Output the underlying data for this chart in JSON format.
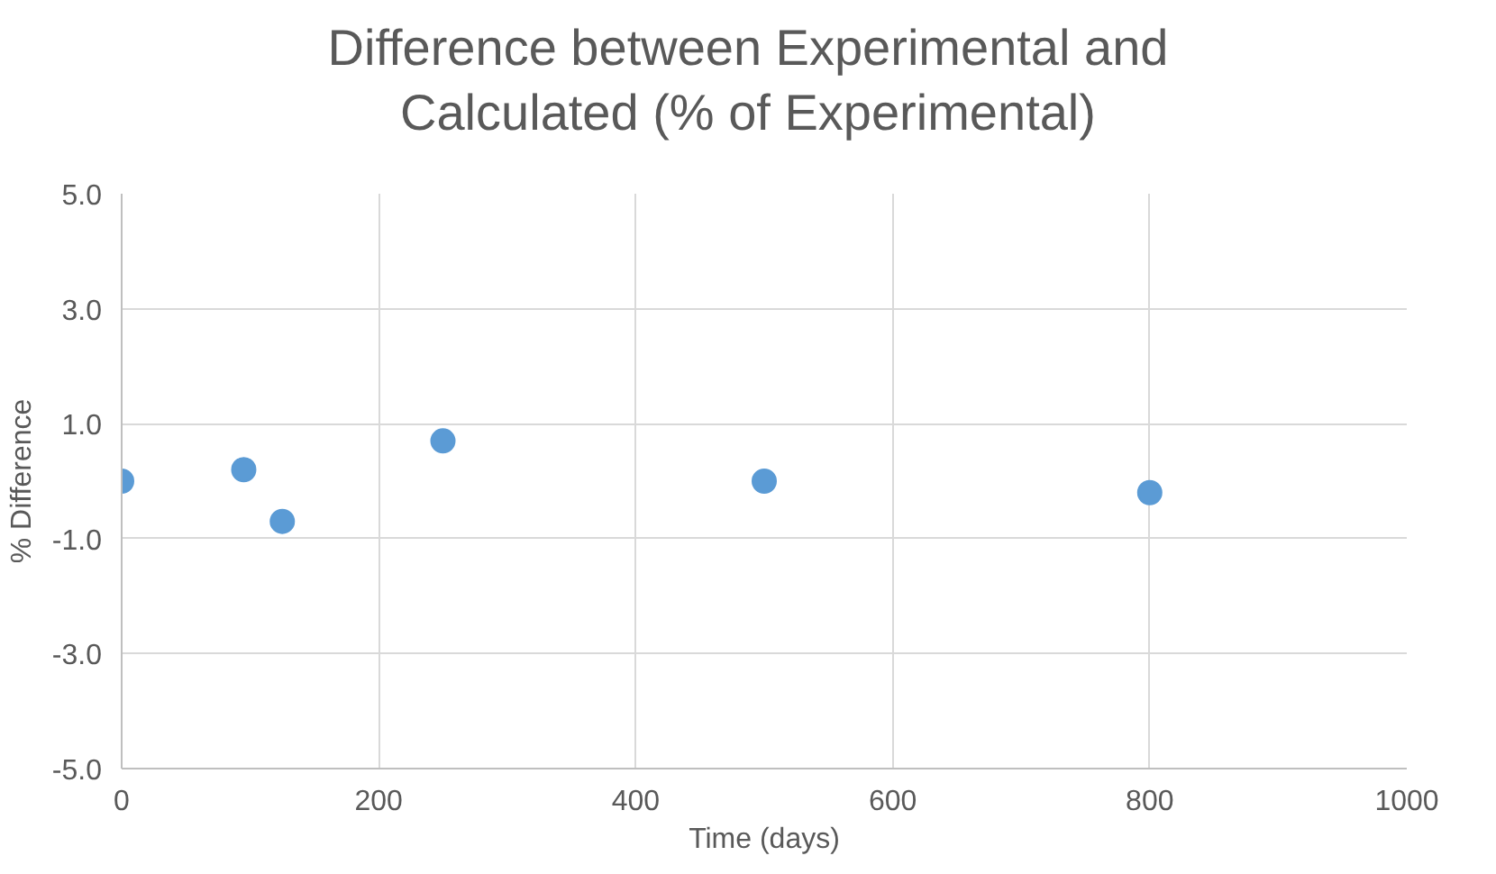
{
  "chart_data": {
    "type": "scatter",
    "title": "Difference between Experimental and Calculated (% of Experimental)",
    "xlabel": "Time (days)",
    "ylabel": "% Difference",
    "x": [
      0,
      95,
      125,
      250,
      500,
      800
    ],
    "series": [
      {
        "color": "#5b9bd5",
        "values": [
          0.0,
          0.2,
          -0.7,
          0.7,
          0.0,
          -0.2
        ]
      }
    ],
    "xlim": [
      0,
      1000
    ],
    "xticks": [
      0,
      200,
      400,
      600,
      800,
      1000
    ],
    "ylim": [
      -5,
      5
    ],
    "yticks": [
      {
        "value": -5,
        "label": "-5.0"
      },
      {
        "value": -3,
        "label": "-3.0"
      },
      {
        "value": -1,
        "label": "-1.0"
      },
      {
        "value": 1,
        "label": "1.0"
      },
      {
        "value": 3,
        "label": "3.0"
      },
      {
        "value": 5,
        "label": "5.0"
      }
    ],
    "grid": true,
    "marker": "circle"
  }
}
